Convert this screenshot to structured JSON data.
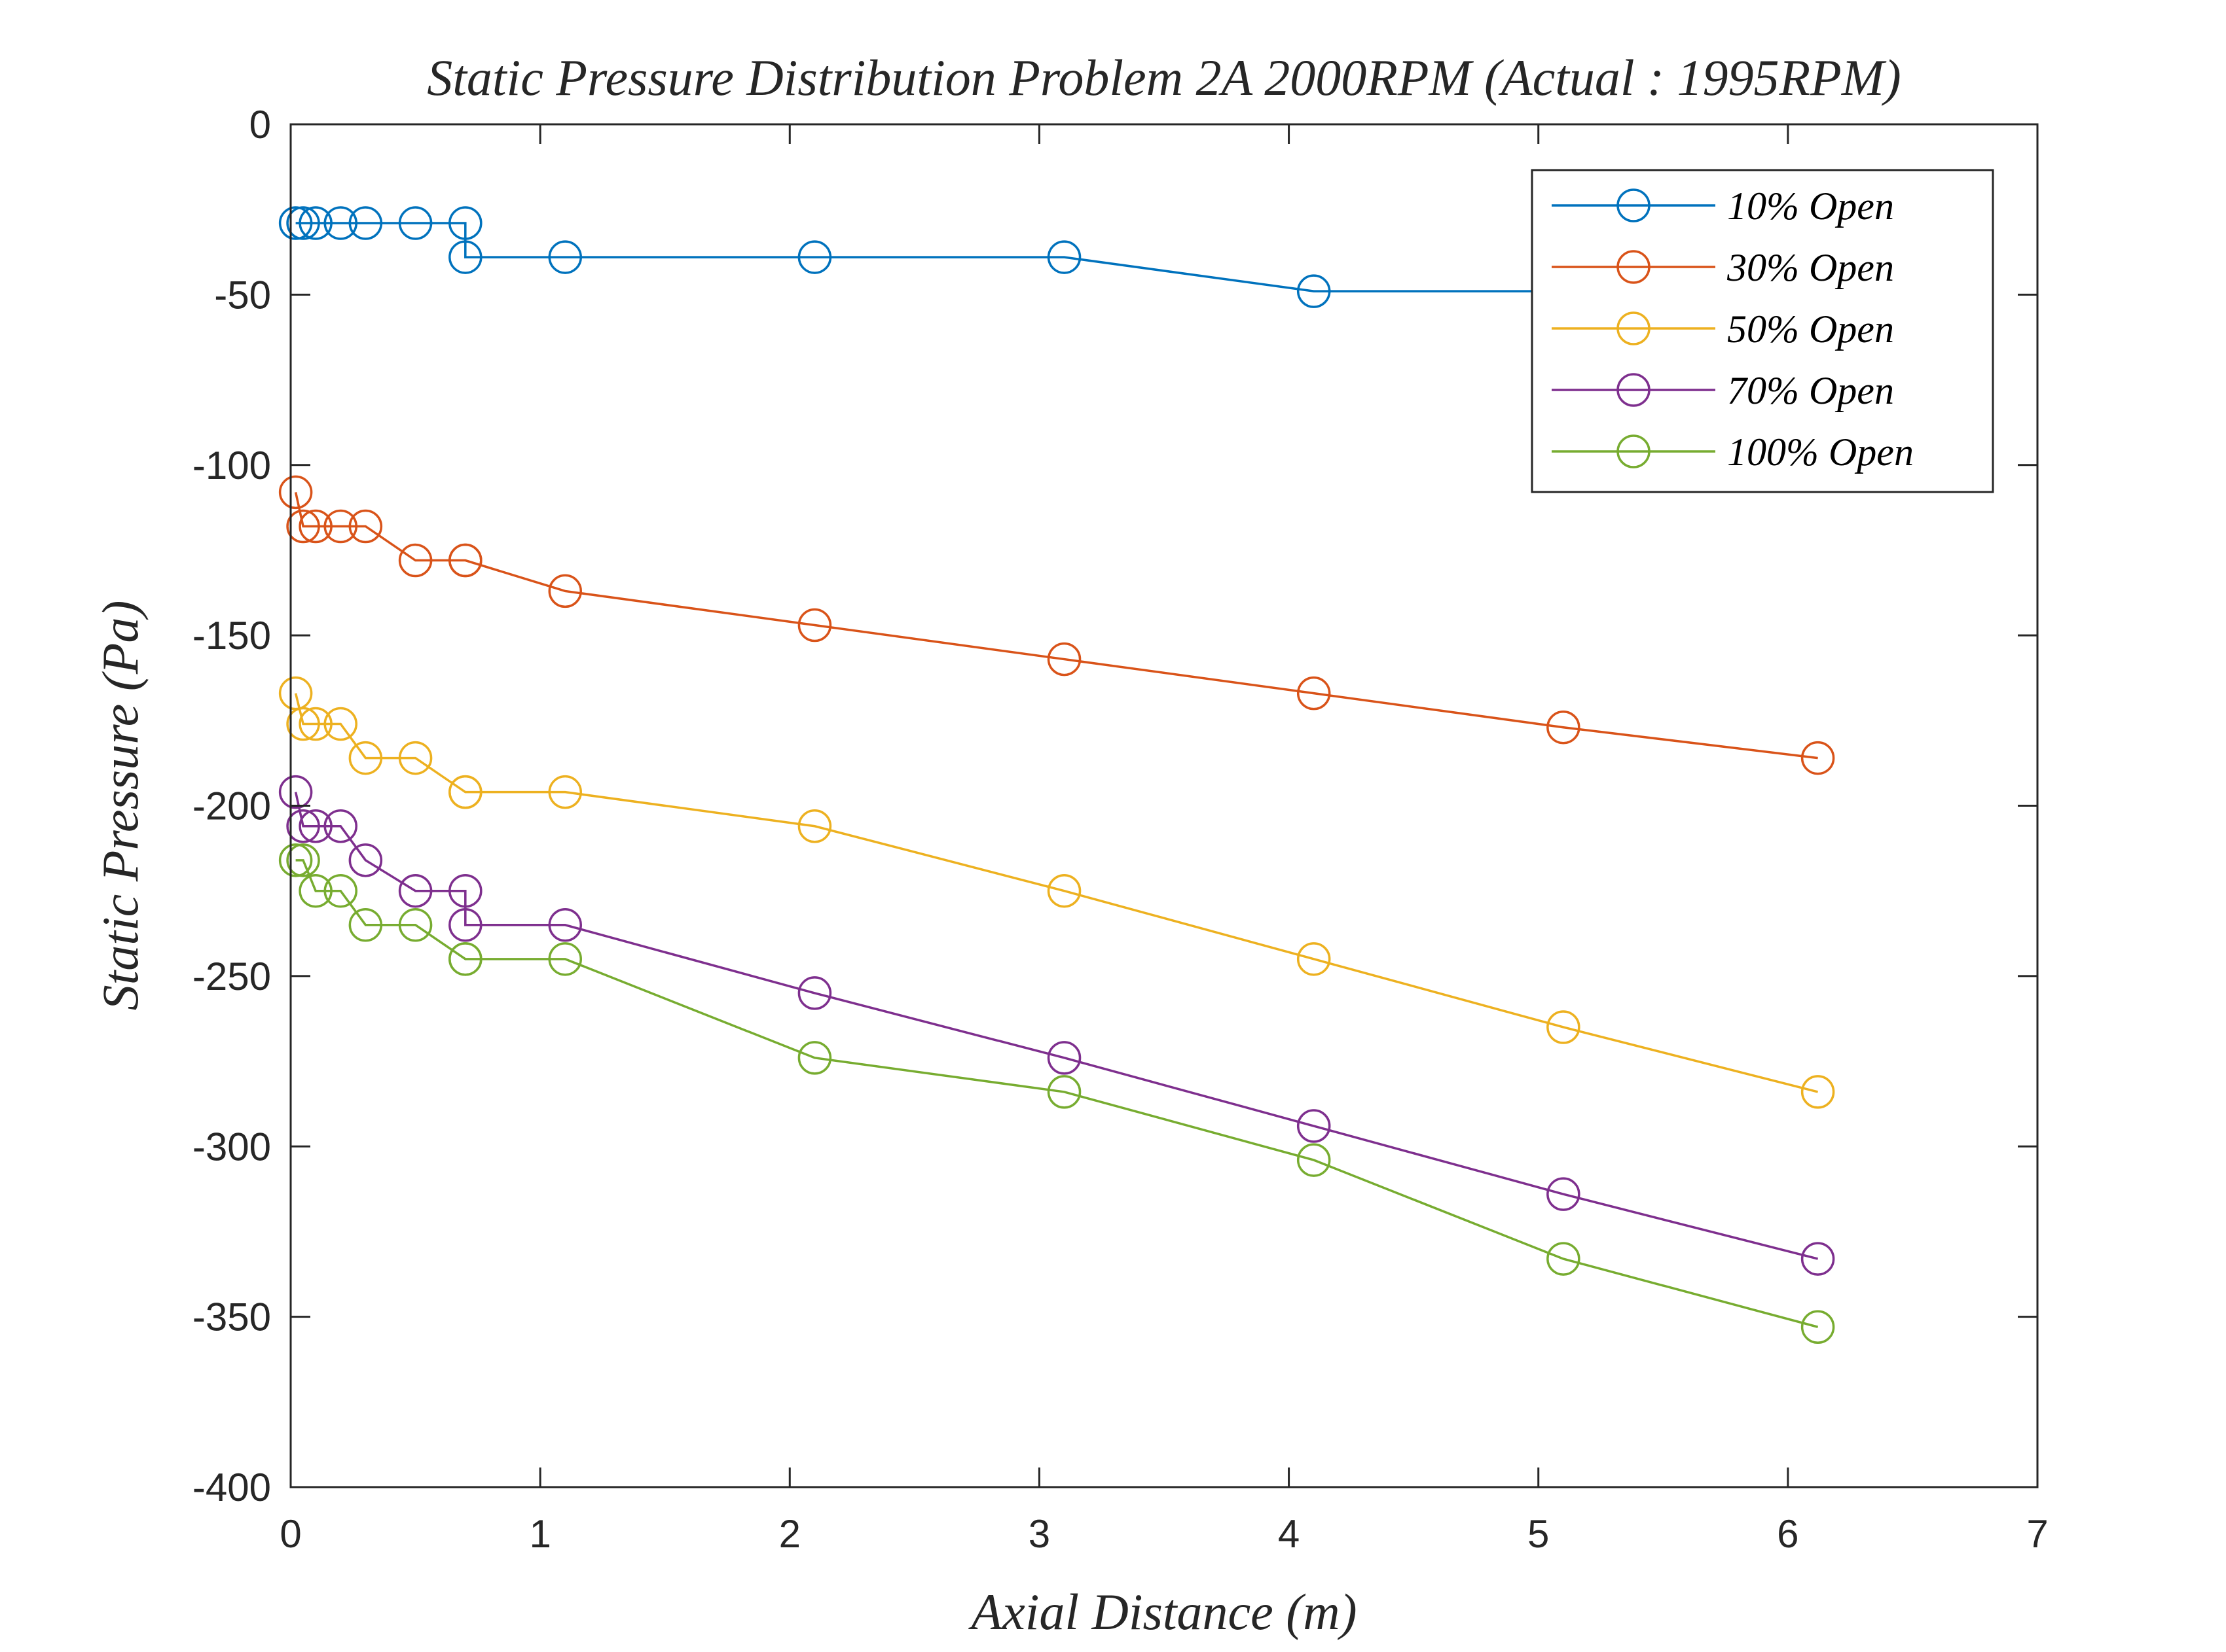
{
  "chart_data": {
    "type": "line",
    "title": "Static Pressure Distribution Problem 2A 2000RPM (Actual :  1995RPM)",
    "xlabel": "Axial Distance (m)",
    "ylabel": "Static Pressure (Pa)",
    "xlim": [
      0,
      7
    ],
    "ylim": [
      -400,
      0
    ],
    "xticks": [
      0,
      1,
      2,
      3,
      4,
      5,
      6,
      7
    ],
    "yticks": [
      0,
      -50,
      -100,
      -150,
      -200,
      -250,
      -300,
      -350,
      -400
    ],
    "xtick_labels": [
      "0",
      "1",
      "2",
      "3",
      "4",
      "5",
      "6",
      "7"
    ],
    "ytick_labels": [
      "0",
      "-50",
      "-100",
      "-150",
      "-200",
      "-250",
      "-300",
      "-350",
      "-400"
    ],
    "grid": false,
    "legend_position": "top-right",
    "marker": "open-circle",
    "x": [
      0.02,
      0.05,
      0.1,
      0.2,
      0.3,
      0.5,
      0.7,
      0.7,
      1.1,
      2.1,
      3.1,
      4.1,
      5.1,
      6.12
    ],
    "series": [
      {
        "name": "10% Open",
        "color": "#0072BD",
        "values": [
          -29,
          -29,
          -29,
          -29,
          -29,
          -29,
          -29,
          -39,
          -39,
          -39,
          -39,
          -49,
          -49,
          -49
        ]
      },
      {
        "name": "30% Open",
        "color": "#D95319",
        "values": [
          -108,
          -118,
          -118,
          -118,
          -118,
          -128,
          -128,
          -128,
          -137,
          -147,
          -157,
          -167,
          -177,
          -186
        ]
      },
      {
        "name": "50% Open",
        "color": "#EDB120",
        "values": [
          -167,
          -176,
          -176,
          -176,
          -186,
          -186,
          -196,
          -196,
          -196,
          -206,
          -225,
          -245,
          -265,
          -284
        ]
      },
      {
        "name": "70% Open",
        "color": "#7E2F8E",
        "values": [
          -196,
          -206,
          -206,
          -206,
          -216,
          -225,
          -225,
          -235,
          -235,
          -255,
          -274,
          -294,
          -314,
          -333
        ]
      },
      {
        "name": "100% Open",
        "color": "#77AC30",
        "values": [
          -216,
          -216,
          -225,
          -225,
          -235,
          -235,
          -245,
          -245,
          -245,
          -274,
          -284,
          -304,
          -333,
          -353
        ]
      }
    ]
  }
}
